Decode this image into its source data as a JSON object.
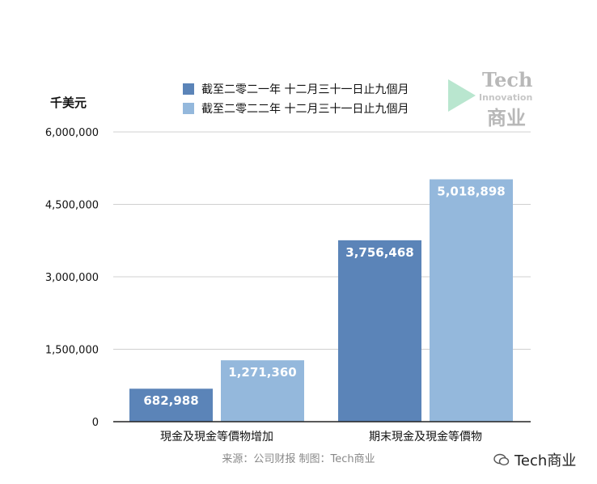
{
  "chart_data": {
    "type": "bar",
    "unit_label": "千美元",
    "categories": [
      "現金及現金等價物增加",
      "期末現金及現金等價物"
    ],
    "series": [
      {
        "name": "截至二零二一年 十二月三十一日止九個月",
        "values": [
          682988,
          3756468
        ],
        "color": "#5b84b8",
        "labels": [
          "682,988",
          "3,756,468"
        ]
      },
      {
        "name": "截至二零二二年 十二月三十一日止九個月",
        "values": [
          1271360,
          5018898
        ],
        "color": "#94b8dc",
        "labels": [
          "1,271,360",
          "5,018,898"
        ]
      }
    ],
    "y_ticks": [
      0,
      1500000,
      3000000,
      4500000,
      6000000
    ],
    "y_tick_labels": [
      "0",
      "1,500,000",
      "3,000,000",
      "4,500,000",
      "6,000,000"
    ],
    "ylim": [
      0,
      6000000
    ],
    "grid": true,
    "legend_position": "top"
  },
  "source_text": "来源：公司财报 制图：Tech商业",
  "logo": {
    "line1": "Tech",
    "line2": "Innovation",
    "line3": "商业"
  },
  "watermark_text": "Tech商业"
}
